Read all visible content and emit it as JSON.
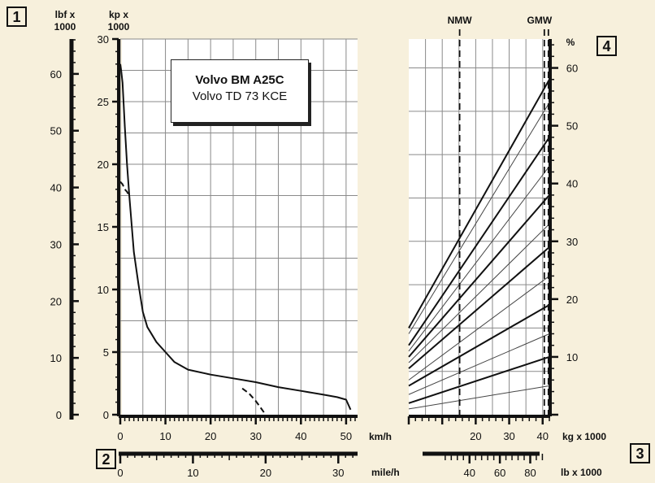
{
  "chart_data": [
    {
      "type": "line",
      "title": "Volvo BM A25C",
      "subtitle": "Volvo TD 73 KCE",
      "x_axis": {
        "label": "km/h",
        "range": [
          0,
          52
        ],
        "ticks": [
          0,
          10,
          20,
          30,
          40,
          50
        ]
      },
      "x_axis_secondary": {
        "label": "mile/h",
        "ticks": [
          0,
          10,
          20,
          30
        ]
      },
      "y_axis_left": {
        "label": [
          "lbf x",
          "1000"
        ],
        "ticks": [
          0,
          10,
          20,
          30,
          40,
          50,
          60
        ]
      },
      "y_axis": {
        "label": [
          "kp x",
          "1000"
        ],
        "range": [
          0,
          30
        ],
        "ticks": [
          0,
          5,
          10,
          15,
          20,
          25,
          30
        ]
      },
      "grid": true,
      "series": [
        {
          "style": "solid",
          "x": [
            0,
            0.2,
            0.5,
            1,
            1.5,
            2,
            3,
            4,
            5,
            6,
            8,
            10,
            12,
            15,
            20,
            25,
            30,
            35,
            40,
            45,
            48,
            50,
            51
          ],
          "y": [
            28,
            27.5,
            26.5,
            23,
            20,
            17.5,
            13,
            10.5,
            8.2,
            7,
            5.8,
            5,
            4.2,
            3.6,
            3.2,
            2.9,
            2.6,
            2.2,
            1.9,
            1.6,
            1.4,
            1.2,
            0.4
          ]
        },
        {
          "style": "dashed",
          "x": [
            0,
            0.5,
            1,
            1.5,
            2
          ],
          "y": [
            18.6,
            18.4,
            18.0,
            17.8,
            17.5
          ]
        },
        {
          "style": "dashed",
          "x": [
            27,
            28.5,
            30,
            31,
            32
          ],
          "y": [
            2.1,
            1.7,
            1.1,
            0.6,
            0.1
          ]
        }
      ]
    },
    {
      "type": "line",
      "x_axis": {
        "label": "kg x 1000",
        "range": [
          0,
          42
        ],
        "ticks": [
          20,
          30,
          40
        ]
      },
      "x_axis_secondary": {
        "label": "lb x 1000",
        "ticks": [
          40,
          60,
          80
        ]
      },
      "y_axis": {
        "label": "%",
        "range": [
          0,
          65
        ],
        "ticks": [
          10,
          20,
          30,
          40,
          50,
          60
        ]
      },
      "reference_lines": [
        {
          "label": "NMW",
          "x": 15.2
        },
        {
          "label": "GMW",
          "x": 40.5
        }
      ],
      "grid": true,
      "series": [
        {
          "weight": "bold",
          "x": [
            0,
            42
          ],
          "y": [
            15,
            58
          ]
        },
        {
          "weight": "thin",
          "x": [
            0,
            42
          ],
          "y": [
            14,
            54
          ]
        },
        {
          "weight": "bold",
          "x": [
            0,
            42
          ],
          "y": [
            12,
            48
          ]
        },
        {
          "weight": "thin",
          "x": [
            0,
            42
          ],
          "y": [
            11,
            43
          ]
        },
        {
          "weight": "bold",
          "x": [
            0,
            42
          ],
          "y": [
            10,
            38
          ]
        },
        {
          "weight": "thin",
          "x": [
            0,
            42
          ],
          "y": [
            9,
            33
          ]
        },
        {
          "weight": "bold",
          "x": [
            0,
            42
          ],
          "y": [
            8,
            29
          ]
        },
        {
          "weight": "thin",
          "x": [
            0,
            42
          ],
          "y": [
            6,
            24
          ]
        },
        {
          "weight": "bold",
          "x": [
            0,
            42
          ],
          "y": [
            5,
            19
          ]
        },
        {
          "weight": "thin",
          "x": [
            0,
            42
          ],
          "y": [
            3.5,
            14
          ]
        },
        {
          "weight": "bold",
          "x": [
            0,
            42
          ],
          "y": [
            2,
            10
          ]
        },
        {
          "weight": "thin",
          "x": [
            0,
            42
          ],
          "y": [
            1,
            5
          ]
        }
      ]
    }
  ],
  "labels": {
    "box1": "1",
    "box2": "2",
    "box3": "3",
    "box4": "4"
  },
  "colors": {
    "background": "#f7f0dc",
    "plot_bg": "#ffffff",
    "grid": "#888888",
    "line": "#111111"
  }
}
